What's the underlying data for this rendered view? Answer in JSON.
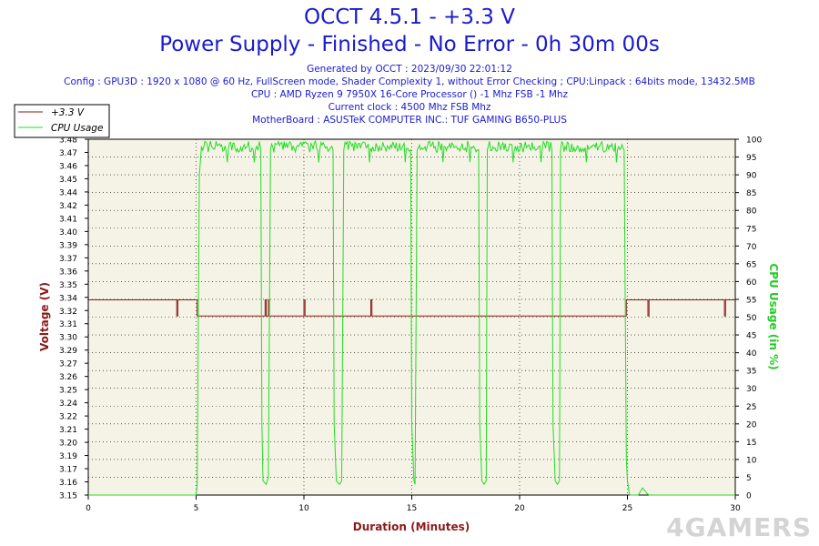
{
  "title": "OCCT 4.5.1 - +3.3 V",
  "subtitle": "Power Supply - Finished - No Error - 0h 30m 00s",
  "info_lines": [
    "Generated by OCCT : 2023/09/30 22:01:12",
    "Config : GPU3D : 1920 x 1080 @ 60 Hz, FullScreen mode, Shader Complexity 1, without Error Checking ; CPU:Linpack : 64bits mode, 13432.5MB",
    "CPU : AMD Ryzen 9 7950X 16-Core Processor () -1 Mhz FSB -1 Mhz",
    "Current clock : 4500 Mhz FSB  Mhz",
    "MotherBoard : ASUSTeK COMPUTER INC.: TUF GAMING B650-PLUS"
  ],
  "watermark": "4GAMERS",
  "colors": {
    "voltage": "#8b1a1a",
    "cpu": "#22dd22",
    "plot_bg": "#f5f3e6",
    "text": "#1a1ad0"
  },
  "chart_data": {
    "type": "line",
    "xlabel": "Duration (Minutes)",
    "ylabel": "Voltage (V)",
    "y2label": "CPU Usage (in %)",
    "xlim": [
      0,
      30
    ],
    "ylim": [
      3.15,
      3.48
    ],
    "y2lim": [
      0,
      100
    ],
    "x_ticks": [
      "0",
      "5",
      "10",
      "15",
      "20",
      "25",
      "30"
    ],
    "y_ticks": [
      "3.15",
      "3.16",
      "3.17",
      "3.19",
      "3.20",
      "3.21",
      "3.22",
      "3.24",
      "3.25",
      "3.26",
      "3.27",
      "3.29",
      "3.30",
      "3.31",
      "3.32",
      "3.34",
      "3.35",
      "3.36",
      "3.37",
      "3.39",
      "3.40",
      "3.41",
      "3.42",
      "3.44",
      "3.45",
      "3.46",
      "3.47",
      "3.48"
    ],
    "y2_ticks": [
      "0",
      "5",
      "10",
      "15",
      "20",
      "25",
      "30",
      "35",
      "40",
      "45",
      "50",
      "55",
      "60",
      "65",
      "70",
      "75",
      "80",
      "85",
      "90",
      "95",
      "100"
    ],
    "legend_position": "top-left",
    "grid": true,
    "series": [
      {
        "name": "+3.3 V",
        "axis": "left",
        "x": [
          0,
          4.1,
          4.1,
          4.15,
          4.15,
          5.05,
          5.05,
          8.2,
          8.2,
          8.25,
          8.25,
          8.35,
          8.35,
          8.4,
          8.4,
          10.0,
          10.0,
          10.05,
          10.05,
          13.1,
          13.1,
          13.15,
          13.15,
          24.95,
          24.95,
          25.95,
          25.95,
          26.0,
          26.0,
          29.5,
          29.5,
          29.55,
          29.55,
          30
        ],
        "y": [
          3.331,
          3.331,
          3.316,
          3.316,
          3.331,
          3.331,
          3.316,
          3.316,
          3.331,
          3.331,
          3.316,
          3.316,
          3.331,
          3.331,
          3.316,
          3.316,
          3.331,
          3.331,
          3.316,
          3.316,
          3.331,
          3.331,
          3.316,
          3.316,
          3.331,
          3.331,
          3.316,
          3.316,
          3.331,
          3.331,
          3.316,
          3.316,
          3.331,
          3.331
        ]
      },
      {
        "name": "CPU Usage",
        "axis": "right",
        "x": [
          0,
          5.0,
          5.05,
          5.15,
          5.25,
          6.5,
          7.8,
          8.0,
          8.05,
          8.1,
          8.25,
          8.35,
          8.45,
          9.5,
          11.0,
          11.35,
          11.4,
          11.5,
          11.65,
          11.75,
          11.85,
          13.5,
          14.8,
          14.95,
          15.0,
          15.1,
          15.15,
          15.25,
          16.5,
          17.8,
          18.1,
          18.15,
          18.25,
          18.35,
          18.45,
          18.5,
          19.8,
          21.2,
          21.5,
          21.55,
          21.65,
          21.75,
          21.85,
          21.9,
          23.3,
          24.8,
          24.85,
          24.95,
          25.0,
          25.1,
          25.5,
          25.7,
          25.9,
          26.0,
          30
        ],
        "y": [
          0,
          0,
          3,
          90,
          98,
          97.5,
          98,
          97,
          20,
          4,
          3,
          5,
          97,
          98,
          97.5,
          97,
          20,
          4,
          3,
          4,
          97,
          98,
          97.5,
          97,
          20,
          4,
          3,
          97,
          98,
          97.5,
          97,
          20,
          4,
          3,
          4,
          97,
          98,
          97.5,
          97,
          20,
          4,
          3,
          4,
          97,
          98,
          97.5,
          97,
          10,
          4,
          0,
          0,
          2,
          0.5,
          0,
          0
        ]
      }
    ]
  }
}
